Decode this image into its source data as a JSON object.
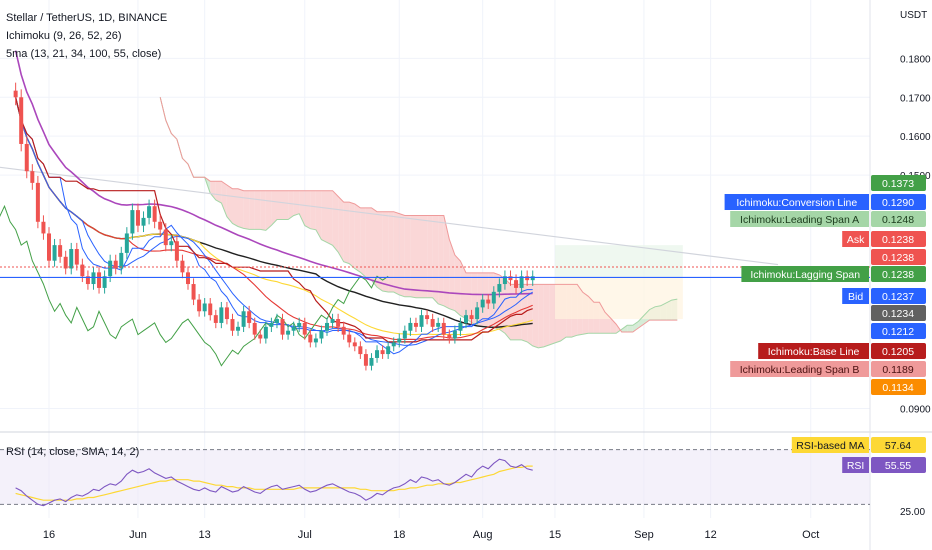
{
  "header": {
    "symbol": "Stellar / TetherUS, 1D, BINANCE",
    "ichimoku": "Ichimoku (9, 26, 52, 26)",
    "sma": "5ma (13, 21, 34, 100, 55, close)",
    "unit": "USDT"
  },
  "rsi_panel": {
    "label": "RSI (14, close, SMA, 14, 2)"
  },
  "colors": {
    "up": "#26a69a",
    "down": "#ef5350",
    "cloud_bear": "#f8c9c9",
    "cloud_bull": "#c8e6c9",
    "conversion": "#2962ff",
    "base": "#b71c1c",
    "lagging": "#43a047",
    "sma13": "#2962ff",
    "sma21": "#e53935",
    "sma34": "#fdd835",
    "sma100": "#ab47bc",
    "sma55": "#212121",
    "bid": "#2962ff",
    "rsi": "#7e57c2",
    "rsi_ma": "#fdd835"
  },
  "chart_data": [
    {
      "type": "candlestick",
      "title": "Stellar / TetherUS, 1D, BINANCE",
      "ylabel": "USDT",
      "ylim": [
        0.085,
        0.195
      ],
      "y_ticks": [
        "0.1800",
        "0.1700",
        "0.1600",
        "0.1500",
        "0.0900"
      ],
      "x_ticks": [
        "16",
        "Jun",
        "13",
        "Jul",
        "18",
        "Aug",
        "15",
        "Sep",
        "12",
        "Oct"
      ],
      "x_tick_days": [
        0,
        16,
        28,
        46,
        63,
        78,
        91,
        107,
        119,
        137
      ],
      "close": [
        0.17,
        0.158,
        0.151,
        0.148,
        0.138,
        0.135,
        0.128,
        0.132,
        0.129,
        0.126,
        0.131,
        0.127,
        0.124,
        0.122,
        0.125,
        0.121,
        0.124,
        0.128,
        0.126,
        0.13,
        0.135,
        0.141,
        0.137,
        0.139,
        0.142,
        0.138,
        0.136,
        0.132,
        0.133,
        0.128,
        0.125,
        0.122,
        0.118,
        0.115,
        0.117,
        0.114,
        0.112,
        0.116,
        0.113,
        0.11,
        0.111,
        0.115,
        0.112,
        0.109,
        0.108,
        0.111,
        0.112,
        0.113,
        0.109,
        0.11,
        0.111,
        0.112,
        0.109,
        0.107,
        0.108,
        0.11,
        0.112,
        0.113,
        0.111,
        0.109,
        0.107,
        0.106,
        0.104,
        0.101,
        0.103,
        0.105,
        0.104,
        0.106,
        0.107,
        0.108,
        0.11,
        0.112,
        0.111,
        0.114,
        0.113,
        0.111,
        0.112,
        0.109,
        0.108,
        0.11,
        0.112,
        0.114,
        0.113,
        0.116,
        0.118,
        0.117,
        0.12,
        0.122,
        0.124,
        0.123,
        0.121,
        0.124,
        0.123,
        0.124
      ],
      "levels": {
        "conversion_line": 0.129,
        "leading_span_a": 0.1248,
        "ask": 0.1238,
        "lagging_span": 0.1238,
        "bid": 0.1237,
        "base_line": 0.1205,
        "leading_span_b": 0.1189
      }
    },
    {
      "type": "line",
      "title": "RSI (14, close, SMA, 14, 2)",
      "ylim": [
        20,
        80
      ],
      "y_ticks": [
        "25.00"
      ],
      "bands": [
        30,
        70
      ],
      "series": [
        {
          "name": "RSI",
          "values": [
            42,
            40,
            36,
            33,
            30,
            29,
            31,
            33,
            34,
            32,
            35,
            37,
            36,
            38,
            41,
            40,
            43,
            45,
            44,
            47,
            52,
            55,
            53,
            54,
            56,
            53,
            51,
            49,
            50,
            47,
            45,
            43,
            41,
            40,
            42,
            40,
            39,
            43,
            41,
            39,
            40,
            43,
            41,
            39,
            38,
            41,
            43,
            44,
            41,
            42,
            43,
            44,
            41,
            39,
            40,
            42,
            44,
            45,
            43,
            41,
            39,
            38,
            36,
            33,
            35,
            38,
            37,
            40,
            42,
            43,
            45,
            48,
            46,
            50,
            49,
            47,
            48,
            45,
            44,
            46,
            49,
            52,
            50,
            55,
            58,
            56,
            60,
            63,
            62,
            58,
            57,
            59,
            56,
            55
          ]
        },
        {
          "name": "RSI-based MA",
          "values": [
            38,
            37,
            36,
            35,
            34,
            33,
            33,
            33,
            33,
            33,
            33,
            34,
            34,
            35,
            35,
            36,
            37,
            38,
            39,
            40,
            41,
            42,
            43,
            44,
            45,
            46,
            47,
            47,
            48,
            48,
            48,
            48,
            47,
            47,
            46,
            45,
            44,
            44,
            43,
            43,
            42,
            42,
            42,
            41,
            41,
            41,
            41,
            41,
            41,
            41,
            41,
            42,
            42,
            42,
            42,
            42,
            42,
            42,
            42,
            42,
            42,
            42,
            41,
            41,
            40,
            40,
            40,
            40,
            40,
            41,
            41,
            42,
            42,
            43,
            44,
            44,
            45,
            45,
            45,
            46,
            46,
            47,
            48,
            49,
            50,
            51,
            52,
            54,
            55,
            56,
            57,
            57,
            58,
            58
          ]
        }
      ],
      "labels": {
        "rsi_ma": 57.64,
        "rsi": 55.55
      }
    }
  ],
  "price_labels": [
    {
      "id": "tag-1373",
      "value": "0.1373",
      "bg": "#43a047",
      "fg": "#ffffff",
      "y": 0.1373
    },
    {
      "id": "tag-conv",
      "caption": "Ichimoku:Conversion Line",
      "value": "0.1290",
      "bg": "#2962ff",
      "fg": "#ffffff",
      "y": 0.129
    },
    {
      "id": "tag-spana",
      "caption": "Ichimoku:Leading Span A",
      "value": "0.1248",
      "bg": "#a5d6a7",
      "fg": "#1b3b1c",
      "y": 0.1248
    },
    {
      "id": "tag-ask",
      "caption": "Ask",
      "value": "0.1238",
      "bg": "#ef5350",
      "fg": "#ffffff",
      "y": 0.1238
    },
    {
      "id": "tag-1238",
      "value": "0.1238",
      "bg": "#ef5350",
      "fg": "#ffffff",
      "y": 0.1238
    },
    {
      "id": "tag-lag",
      "caption": "Ichimoku:Lagging Span",
      "value": "0.1238",
      "bg": "#43a047",
      "fg": "#ffffff",
      "y": 0.1238
    },
    {
      "id": "tag-bid",
      "caption": "Bid",
      "value": "0.1237",
      "bg": "#2962ff",
      "fg": "#ffffff",
      "y": 0.1237
    },
    {
      "id": "tag-1234",
      "value": "0.1234",
      "bg": "#616161",
      "fg": "#ffffff",
      "y": 0.1234
    },
    {
      "id": "tag-1212",
      "value": "0.1212",
      "bg": "#2962ff",
      "fg": "#ffffff",
      "y": 0.1212
    },
    {
      "id": "tag-base",
      "caption": "Ichimoku:Base Line",
      "value": "0.1205",
      "bg": "#b71c1c",
      "fg": "#ffffff",
      "y": 0.1205
    },
    {
      "id": "tag-spanb",
      "caption": "Ichimoku:Leading Span B",
      "value": "0.1189",
      "bg": "#ef9a9a",
      "fg": "#4a1010",
      "y": 0.1189
    },
    {
      "id": "tag-1134",
      "value": "0.1134",
      "bg": "#fb8c00",
      "fg": "#ffffff",
      "y": 0.1134
    }
  ],
  "rsi_labels": [
    {
      "id": "tag-rsima",
      "caption": "RSI-based MA",
      "value": "57.64",
      "bg": "#fdd835",
      "fg": "#131722"
    },
    {
      "id": "tag-rsi",
      "caption": "RSI",
      "value": "55.55",
      "bg": "#7e57c2",
      "fg": "#ffffff"
    }
  ]
}
